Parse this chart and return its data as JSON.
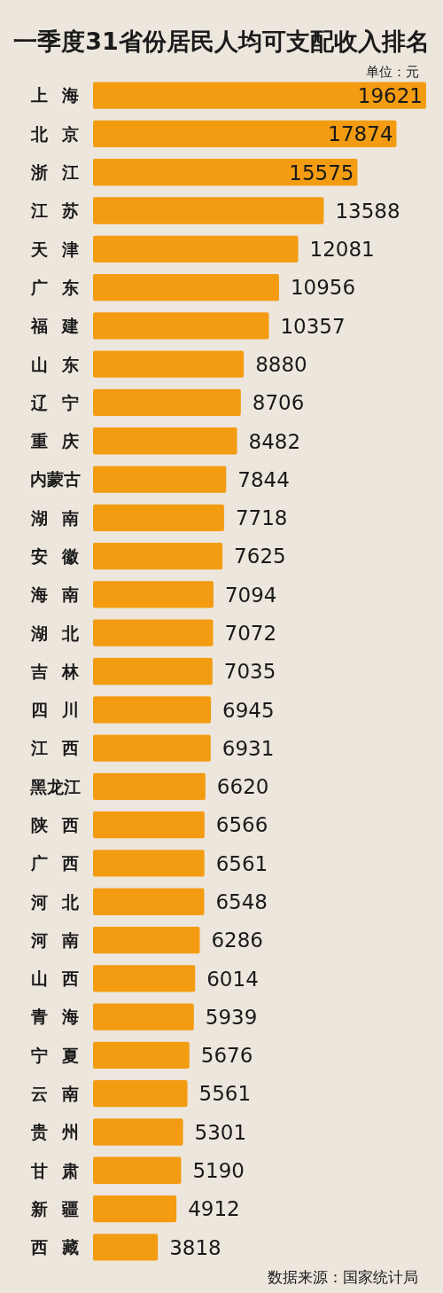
{
  "chart_data": {
    "type": "bar",
    "orientation": "horizontal",
    "title": "一季度31省份居民人均可支配收入排名",
    "categories": [
      "上海",
      "北京",
      "浙江",
      "江苏",
      "天津",
      "广东",
      "福建",
      "山东",
      "辽宁",
      "重庆",
      "内蒙古",
      "湖南",
      "安徽",
      "海南",
      "湖北",
      "吉林",
      "四川",
      "江西",
      "黑龙江",
      "陕西",
      "广西",
      "河北",
      "河南",
      "山西",
      "青海",
      "宁夏",
      "云南",
      "贵州",
      "甘肃",
      "新疆",
      "西藏"
    ],
    "values": [
      19621,
      17874,
      15575,
      13588,
      12081,
      10956,
      10357,
      8880,
      8706,
      8482,
      7844,
      7718,
      7625,
      7094,
      7072,
      7035,
      6945,
      6931,
      6620,
      6566,
      6561,
      6548,
      6286,
      6014,
      5939,
      5676,
      5561,
      5301,
      5190,
      4912,
      3818
    ],
    "color": "#f39c12",
    "data_labels": true,
    "annotations": [
      "单位：元",
      "数据来源：国家统计局"
    ]
  }
}
